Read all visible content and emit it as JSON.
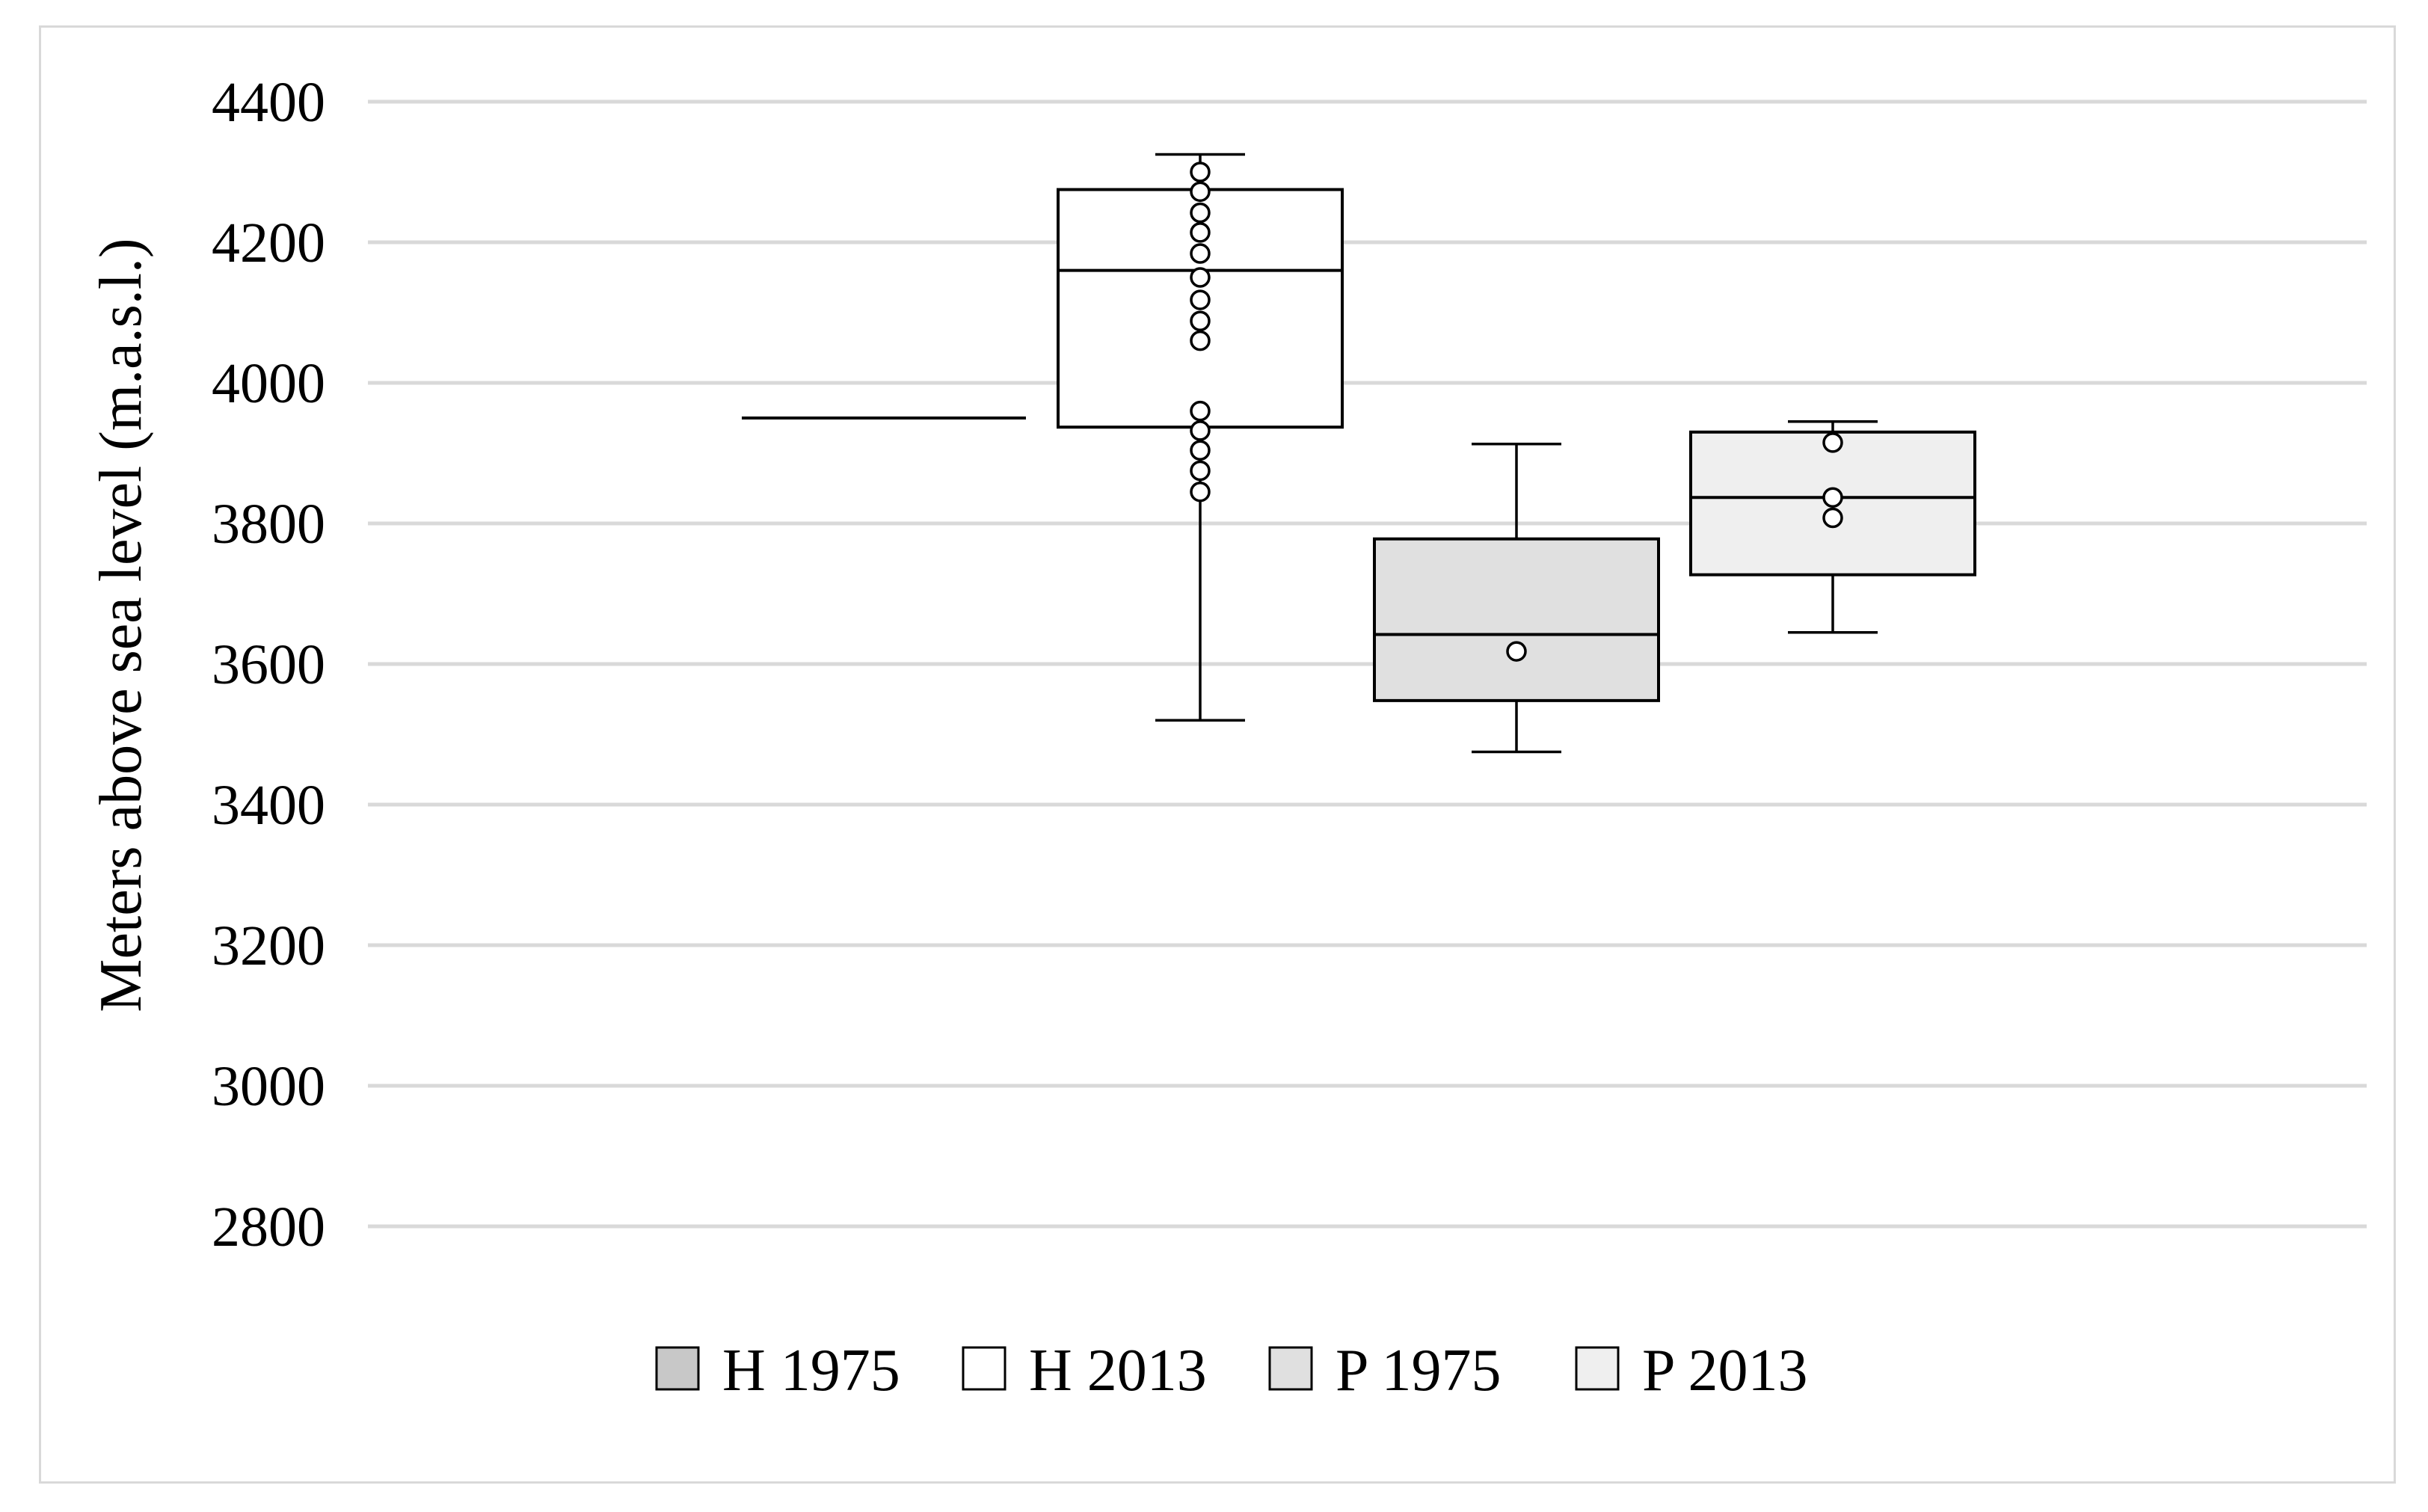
{
  "chart_data": {
    "type": "box",
    "title": "",
    "xlabel": "",
    "ylabel": "Meters above sea level (m.a.s.l.)",
    "ylim": [
      2800,
      4400
    ],
    "yticks": [
      2800,
      3000,
      3200,
      3400,
      3600,
      3800,
      4000,
      4200,
      4400
    ],
    "grid": true,
    "legend_position": "bottom",
    "series": [
      {
        "name": "H 1975",
        "color": "#c8c8c8",
        "min": 3950,
        "q1": 3950,
        "median": 3950,
        "q3": 3950,
        "max": 3950,
        "points": []
      },
      {
        "name": "H 2013",
        "color": "#ffffff",
        "min": 3520,
        "q1": 3937,
        "median": 4160,
        "q3": 4275,
        "max": 4325,
        "points": [
          4300,
          4272,
          4242,
          4214,
          4184,
          4150,
          4118,
          4088,
          4060,
          3960,
          3932,
          3904,
          3875,
          3845
        ]
      },
      {
        "name": "P 1975",
        "color": "#e0e0e0",
        "min": 3475,
        "q1": 3548,
        "median": 3642,
        "q3": 3778,
        "max": 3913,
        "points": [
          3618
        ]
      },
      {
        "name": "P 2013",
        "color": "#efefef",
        "min": 3645,
        "q1": 3727,
        "median": 3837,
        "q3": 3930,
        "max": 3945,
        "points": [
          3915,
          3837,
          3808
        ]
      }
    ]
  }
}
